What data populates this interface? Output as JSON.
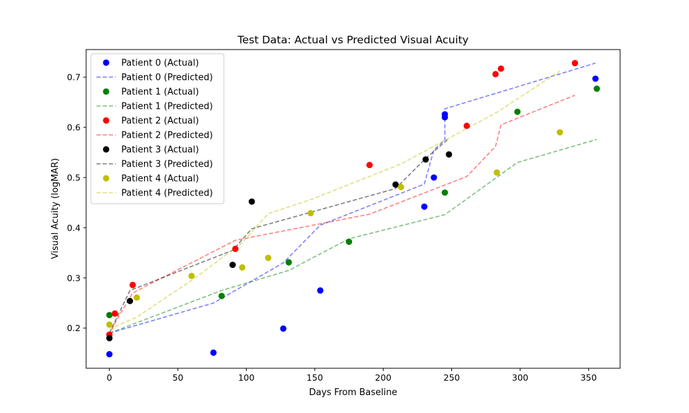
{
  "chart_data": {
    "type": "scatter",
    "title": "Test Data: Actual vs Predicted Visual Acuity",
    "xlabel": "Days From Baseline",
    "ylabel": "Visual Acuity (logMAR)",
    "xlim": [
      -17,
      373
    ],
    "ylim": [
      0.12,
      0.755
    ],
    "xticks": [
      0,
      50,
      100,
      150,
      200,
      250,
      300,
      350
    ],
    "yticks": [
      0.2,
      0.3,
      0.4,
      0.5,
      0.6,
      0.7
    ],
    "ytick_labels": [
      "0.2",
      "0.3",
      "0.4",
      "0.5",
      "0.6",
      "0.7"
    ],
    "grid": false,
    "legend_position": "top-left",
    "series": [
      {
        "name": "Patient 0 (Actual)",
        "kind": "scatter",
        "color": "#0000ff",
        "x": [
          0,
          76,
          127,
          154,
          230,
          237,
          245,
          245,
          355
        ],
        "y": [
          0.148,
          0.151,
          0.199,
          0.275,
          0.442,
          0.5,
          0.62,
          0.626,
          0.697
        ]
      },
      {
        "name": "Patient 0 (Predicted)",
        "kind": "line",
        "color": "#0000ff",
        "x": [
          0,
          76,
          127,
          154,
          230,
          237,
          245,
          245,
          355
        ],
        "y": [
          0.19,
          0.25,
          0.33,
          0.405,
          0.487,
          0.555,
          0.575,
          0.637,
          0.728
        ]
      },
      {
        "name": "Patient 1 (Actual)",
        "kind": "scatter",
        "color": "#008000",
        "x": [
          0,
          82,
          131,
          175,
          245,
          298,
          356
        ],
        "y": [
          0.226,
          0.264,
          0.331,
          0.372,
          0.47,
          0.631,
          0.677
        ]
      },
      {
        "name": "Patient 1 (Predicted)",
        "kind": "line",
        "color": "#008000",
        "x": [
          0,
          82,
          131,
          175,
          245,
          298,
          356
        ],
        "y": [
          0.19,
          0.275,
          0.315,
          0.378,
          0.426,
          0.53,
          0.576
        ]
      },
      {
        "name": "Patient 2 (Actual)",
        "kind": "scatter",
        "color": "#ff0000",
        "x": [
          0,
          4,
          17,
          92,
          190,
          261,
          282,
          286,
          340
        ],
        "y": [
          0.187,
          0.229,
          0.286,
          0.358,
          0.525,
          0.603,
          0.706,
          0.717,
          0.728
        ]
      },
      {
        "name": "Patient 2 (Predicted)",
        "kind": "line",
        "color": "#ff0000",
        "x": [
          0,
          4,
          17,
          92,
          190,
          261,
          282,
          286,
          340
        ],
        "y": [
          0.185,
          0.21,
          0.27,
          0.375,
          0.427,
          0.502,
          0.562,
          0.605,
          0.664
        ]
      },
      {
        "name": "Patient 3 (Actual)",
        "kind": "scatter",
        "color": "#000000",
        "x": [
          0,
          15,
          90,
          104,
          209,
          231,
          248
        ],
        "y": [
          0.18,
          0.254,
          0.326,
          0.452,
          0.486,
          0.536,
          0.546
        ]
      },
      {
        "name": "Patient 3 (Predicted)",
        "kind": "line",
        "color": "#000000",
        "x": [
          0,
          15,
          90,
          104,
          209,
          231,
          248
        ],
        "y": [
          0.19,
          0.275,
          0.355,
          0.398,
          0.478,
          0.538,
          0.578
        ]
      },
      {
        "name": "Patient 4 (Actual)",
        "kind": "scatter",
        "color": "#bfbf00",
        "x": [
          0,
          20,
          60,
          97,
          116,
          147,
          213,
          283,
          329
        ],
        "y": [
          0.207,
          0.261,
          0.304,
          0.321,
          0.34,
          0.429,
          0.481,
          0.51,
          0.59
        ]
      },
      {
        "name": "Patient 4 (Predicted)",
        "kind": "line",
        "color": "#bfbf00",
        "x": [
          0,
          20,
          60,
          97,
          116,
          147,
          213,
          283,
          329
        ],
        "y": [
          0.198,
          0.222,
          0.295,
          0.37,
          0.428,
          0.456,
          0.527,
          0.63,
          0.712
        ]
      }
    ]
  }
}
